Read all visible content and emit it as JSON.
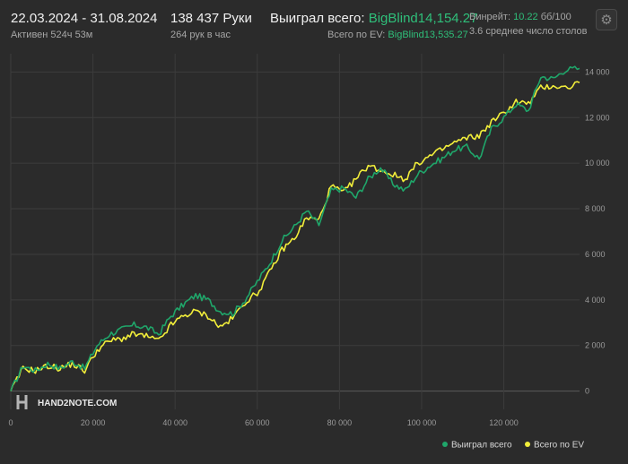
{
  "header": {
    "date_range": "22.03.2024 - 31.08.2024",
    "active": "Активен 524ч 53м",
    "hands": "138 437 Руки",
    "hands_per_hour": "264 рук в час",
    "won_label": "Выиграл всего:",
    "won_value": "BigBlind14,154.27",
    "ev_label": "Всего по EV:",
    "ev_value": "BigBlind13,535.27",
    "winrate_label": "Винрейт:",
    "winrate_value": "10.22",
    "winrate_unit": "бб/100",
    "tables": "3.6 среднее число столов"
  },
  "icons": {
    "settings": "gear-icon"
  },
  "logo": {
    "text": "HAND2NOTE.COM"
  },
  "colors": {
    "won": "#1fa66a",
    "ev": "#f2ee3a",
    "background": "#2b2b2b",
    "grid": "#3c3c3c"
  },
  "chart_data": {
    "type": "line",
    "xlim": [
      0,
      138437
    ],
    "ylim": [
      -800,
      14800
    ],
    "x_ticks": [
      0,
      20000,
      40000,
      60000,
      80000,
      100000,
      120000
    ],
    "x_tick_labels": [
      "0",
      "20 000",
      "40 000",
      "60 000",
      "80 000",
      "100 000",
      "120 000"
    ],
    "y_ticks": [
      0,
      2000,
      4000,
      6000,
      8000,
      10000,
      12000,
      14000
    ],
    "y_tick_labels": [
      "0",
      "2 000",
      "4 000",
      "6 000",
      "8 000",
      "10 000",
      "12 000",
      "14 000"
    ],
    "legend_position": "bottom-right",
    "series": [
      {
        "name": "Выиграл всего",
        "color": "#1fa66a",
        "x": [
          0,
          3000,
          6000,
          9000,
          12000,
          15000,
          18000,
          21000,
          24000,
          27000,
          30000,
          33000,
          36000,
          39000,
          42000,
          45000,
          48000,
          51000,
          54000,
          57000,
          60000,
          63000,
          66000,
          69000,
          72000,
          75000,
          78000,
          81000,
          84000,
          87000,
          90000,
          93000,
          96000,
          99000,
          102000,
          105000,
          108000,
          111000,
          114000,
          117000,
          120000,
          123000,
          126000,
          129000,
          132000,
          135000,
          138437
        ],
        "y": [
          0,
          1100,
          900,
          1200,
          1000,
          1300,
          1000,
          2000,
          2500,
          2700,
          2900,
          2800,
          2500,
          3300,
          3800,
          4200,
          4000,
          3500,
          3400,
          4000,
          4800,
          5600,
          6600,
          7200,
          7900,
          7300,
          8800,
          8900,
          8500,
          9300,
          9800,
          9100,
          8800,
          9500,
          9900,
          10200,
          10600,
          10700,
          10200,
          11500,
          12000,
          12600,
          12300,
          13800,
          13700,
          14100,
          14154.27
        ]
      },
      {
        "name": "Всего по EV",
        "color": "#f2ee3a",
        "x": [
          0,
          3000,
          6000,
          9000,
          12000,
          15000,
          18000,
          21000,
          24000,
          27000,
          30000,
          33000,
          36000,
          39000,
          42000,
          45000,
          48000,
          51000,
          54000,
          57000,
          60000,
          63000,
          66000,
          69000,
          72000,
          75000,
          78000,
          81000,
          84000,
          87000,
          90000,
          93000,
          96000,
          99000,
          102000,
          105000,
          108000,
          111000,
          114000,
          117000,
          120000,
          123000,
          126000,
          129000,
          132000,
          135000,
          138437
        ],
        "y": [
          0,
          1000,
          900,
          1100,
          1000,
          1200,
          900,
          1800,
          2200,
          2300,
          2500,
          2400,
          2200,
          2900,
          3300,
          3500,
          3300,
          2800,
          3200,
          3900,
          4300,
          5200,
          6200,
          6700,
          7600,
          7500,
          9000,
          8700,
          9300,
          9900,
          9700,
          9500,
          9300,
          10000,
          10300,
          10600,
          10900,
          11100,
          11200,
          11800,
          12200,
          12700,
          12600,
          13300,
          13400,
          13300,
          13535.27
        ]
      }
    ]
  }
}
